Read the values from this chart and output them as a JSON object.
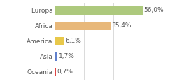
{
  "categories": [
    "Europa",
    "Africa",
    "America",
    "Asia",
    "Oceania"
  ],
  "values": [
    56.0,
    35.4,
    6.1,
    1.7,
    0.7
  ],
  "labels": [
    "56,0%",
    "35,4%",
    "6,1%",
    "1,7%",
    "0,7%"
  ],
  "bar_colors": [
    "#adc97d",
    "#e8b87a",
    "#e8c84a",
    "#6080cc",
    "#dd4444"
  ],
  "background_color": "#ffffff",
  "xlim": [
    0,
    75
  ],
  "bar_height": 0.55,
  "label_fontsize": 6.5,
  "tick_fontsize": 6.5,
  "vline_x": 56.0,
  "vline_color": "#cccccc"
}
